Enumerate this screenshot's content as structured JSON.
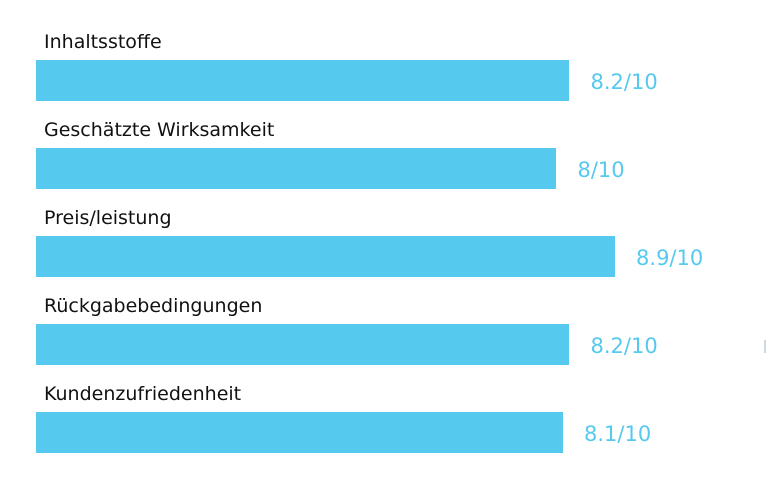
{
  "chart_data": {
    "type": "bar",
    "orientation": "horizontal",
    "categories": [
      "Inhaltsstoffe",
      "Geschätzte Wirksamkeit",
      "Preis/leistung",
      "Rückgabebedingungen",
      "Kundenzufriedenheit"
    ],
    "values": [
      8.2,
      8,
      8.9,
      8.2,
      8.1
    ],
    "value_labels": [
      "8.2/10",
      "8/10",
      "8.9/10",
      "8.2/10",
      "8.1/10"
    ],
    "max": 10,
    "colors": {
      "bar": "#56c9ef",
      "value_text": "#56c9ef",
      "label_text": "#111111"
    },
    "grid": false,
    "legend": "none"
  }
}
